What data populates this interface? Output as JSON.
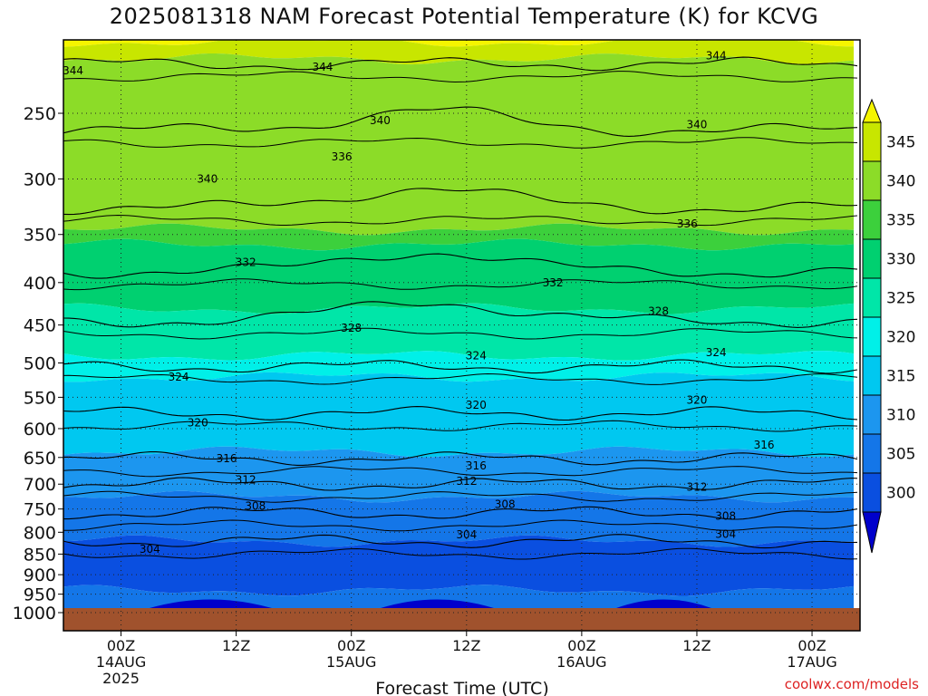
{
  "chart_data": {
    "type": "heatmap",
    "title": "2025081318 NAM Forecast Potential Temperature (K) for KCVG",
    "xlabel": "Forecast Time (UTC)",
    "ylabel": "",
    "y_scale": "log-pressure",
    "y_ticks": [
      250,
      300,
      350,
      400,
      450,
      500,
      550,
      600,
      650,
      700,
      750,
      800,
      850,
      900,
      950,
      1000
    ],
    "ylim": [
      1000,
      200
    ],
    "xlim": [
      "2025-08-13 18Z",
      "2025-08-17 05Z"
    ],
    "x_ticks": [
      {
        "time": "2025-08-14 00Z",
        "label": "00Z",
        "sub": "14AUG",
        "sub2": "2025"
      },
      {
        "time": "2025-08-14 12Z",
        "label": "12Z",
        "sub": "",
        "sub2": ""
      },
      {
        "time": "2025-08-15 00Z",
        "label": "00Z",
        "sub": "15AUG",
        "sub2": ""
      },
      {
        "time": "2025-08-15 12Z",
        "label": "12Z",
        "sub": "",
        "sub2": ""
      },
      {
        "time": "2025-08-16 00Z",
        "label": "00Z",
        "sub": "16AUG",
        "sub2": ""
      },
      {
        "time": "2025-08-16 12Z",
        "label": "12Z",
        "sub": "",
        "sub2": ""
      },
      {
        "time": "2025-08-17 00Z",
        "label": "00Z",
        "sub": "17AUG",
        "sub2": ""
      }
    ],
    "colorbar": {
      "levels": [
        300,
        305,
        310,
        315,
        320,
        325,
        330,
        335,
        340,
        345
      ],
      "colors": [
        "#0000cc",
        "#0a4fe0",
        "#1476e8",
        "#1c96ef",
        "#00c8f0",
        "#00f0e8",
        "#00e6a8",
        "#00d070",
        "#3cd03c",
        "#8cdc28",
        "#c8e600",
        "#f5f500"
      ]
    },
    "contour_levels": [
      304,
      308,
      312,
      316,
      320,
      324,
      328,
      332,
      336,
      340,
      344
    ],
    "contour_labels": [
      {
        "value": "344",
        "time": "2025-08-13 19Z",
        "p": 222
      },
      {
        "value": "344",
        "time": "2025-08-14 21Z",
        "p": 220
      },
      {
        "value": "344",
        "time": "2025-08-16 14Z",
        "p": 213
      },
      {
        "value": "340",
        "time": "2025-08-15 03Z",
        "p": 255
      },
      {
        "value": "340",
        "time": "2025-08-16 12Z",
        "p": 258
      },
      {
        "value": "340",
        "time": "2025-08-14 09Z",
        "p": 300
      },
      {
        "value": "336",
        "time": "2025-08-14 23Z",
        "p": 282
      },
      {
        "value": "336",
        "time": "2025-08-16 11Z",
        "p": 340
      },
      {
        "value": "332",
        "time": "2025-08-14 13Z",
        "p": 378
      },
      {
        "value": "332",
        "time": "2025-08-15 21Z",
        "p": 400
      },
      {
        "value": "328",
        "time": "2025-08-15 00Z",
        "p": 454
      },
      {
        "value": "328",
        "time": "2025-08-16 08Z",
        "p": 433
      },
      {
        "value": "324",
        "time": "2025-08-14 06Z",
        "p": 520
      },
      {
        "value": "324",
        "time": "2025-08-15 13Z",
        "p": 490
      },
      {
        "value": "324",
        "time": "2025-08-16 14Z",
        "p": 486
      },
      {
        "value": "320",
        "time": "2025-08-14 08Z",
        "p": 590
      },
      {
        "value": "320",
        "time": "2025-08-15 13Z",
        "p": 562
      },
      {
        "value": "320",
        "time": "2025-08-16 12Z",
        "p": 554
      },
      {
        "value": "316",
        "time": "2025-08-14 11Z",
        "p": 652
      },
      {
        "value": "316",
        "time": "2025-08-15 13Z",
        "p": 665
      },
      {
        "value": "316",
        "time": "2025-08-16 19Z",
        "p": 628
      },
      {
        "value": "312",
        "time": "2025-08-14 13Z",
        "p": 692
      },
      {
        "value": "312",
        "time": "2025-08-15 12Z",
        "p": 694
      },
      {
        "value": "312",
        "time": "2025-08-16 12Z",
        "p": 706
      },
      {
        "value": "308",
        "time": "2025-08-14 14Z",
        "p": 744
      },
      {
        "value": "308",
        "time": "2025-08-15 16Z",
        "p": 740
      },
      {
        "value": "308",
        "time": "2025-08-16 15Z",
        "p": 765
      },
      {
        "value": "304",
        "time": "2025-08-14 03Z",
        "p": 838
      },
      {
        "value": "304",
        "time": "2025-08-15 12Z",
        "p": 805
      },
      {
        "value": "304",
        "time": "2025-08-16 15Z",
        "p": 804
      }
    ]
  },
  "watermark": "coolwx.com/models"
}
